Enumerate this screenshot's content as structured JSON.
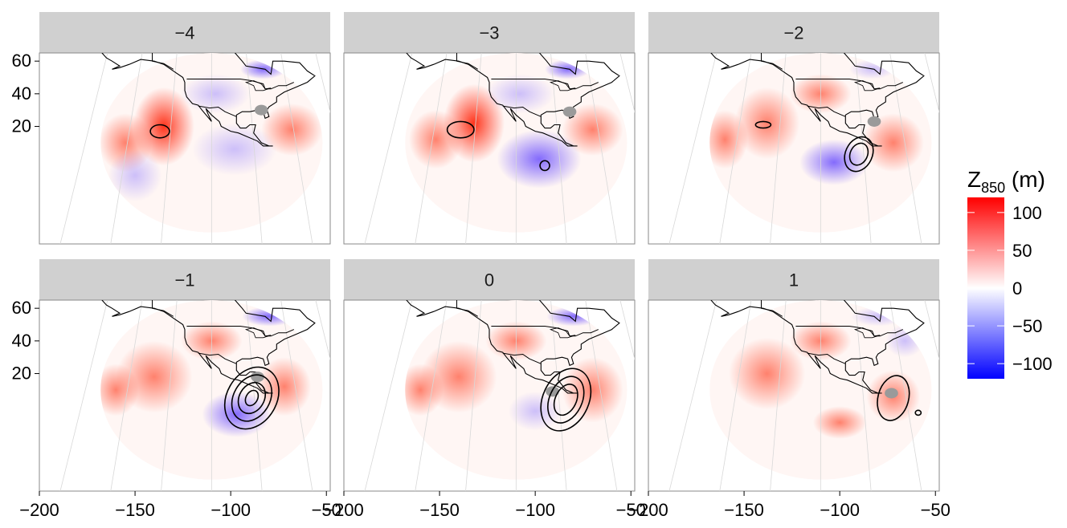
{
  "chart_data": {
    "type": "heatmap",
    "panels": [
      {
        "label": "−4",
        "contours": [
          {
            "cx": -137,
            "cy": 17,
            "rx": 5,
            "ry": 4,
            "rot": 0
          }
        ]
      },
      {
        "label": "−3",
        "contours": [
          {
            "cx": -139,
            "cy": 18,
            "rx": 7,
            "ry": 5,
            "rot": 0
          },
          {
            "cx": -95,
            "cy": -4,
            "rx": 2.5,
            "ry": 3,
            "rot": 0
          }
        ]
      },
      {
        "label": "−2",
        "contours": [
          {
            "cx": -140,
            "cy": 21,
            "rx": 4,
            "ry": 2,
            "rot": 0
          },
          {
            "cx": -90,
            "cy": 3,
            "rx": 7,
            "ry": 11,
            "rot": 25
          },
          {
            "cx": -90,
            "cy": 3,
            "rx": 4.5,
            "ry": 7,
            "rot": 25
          }
        ]
      },
      {
        "label": "−1",
        "contours": [
          {
            "cx": -89,
            "cy": 5,
            "rx": 13,
            "ry": 20,
            "rot": 30
          },
          {
            "cx": -89,
            "cy": 5,
            "rx": 9.5,
            "ry": 15,
            "rot": 30
          },
          {
            "cx": -89,
            "cy": 5,
            "rx": 6.5,
            "ry": 10,
            "rot": 30
          },
          {
            "cx": -89,
            "cy": 5,
            "rx": 3,
            "ry": 5,
            "rot": 30
          }
        ]
      },
      {
        "label": "0",
        "contours": [
          {
            "cx": -84,
            "cy": 4,
            "rx": 12,
            "ry": 20,
            "rot": 25
          },
          {
            "cx": -84,
            "cy": 4,
            "rx": 8.5,
            "ry": 15,
            "rot": 25
          },
          {
            "cx": -84,
            "cy": 4,
            "rx": 5.5,
            "ry": 10,
            "rot": 25
          }
        ]
      },
      {
        "label": "1",
        "contours": [
          {
            "cx": -72,
            "cy": 5,
            "rx": 8,
            "ry": 14,
            "rot": 15
          },
          {
            "cx": -59,
            "cy": -4,
            "rx": 1.5,
            "ry": 1.5,
            "rot": 0
          }
        ]
      }
    ],
    "xticks": [
      -200,
      -150,
      -100,
      -50
    ],
    "xtick_labels": [
      "−200",
      "−150",
      "−100",
      "−50"
    ],
    "xlim": [
      -200,
      -48
    ],
    "yticks": [
      60,
      40,
      20
    ],
    "ytick_labels": [
      "60",
      "40",
      "20"
    ],
    "ylim": [
      -52,
      65
    ],
    "legend": {
      "title_main": "Z",
      "title_sub": "850",
      "title_unit": " (m)",
      "ticks": [
        100,
        50,
        0,
        -50,
        -100
      ],
      "tick_labels": [
        "100",
        "50",
        "0",
        "−50",
        "−100"
      ],
      "range": [
        -120,
        120
      ],
      "placement": "right"
    },
    "colors": {
      "high": "#ff0000",
      "mid": "#ffffff",
      "low": "#0000ff",
      "strip": "#d0d0d0",
      "land": "#9a9a9a"
    }
  }
}
